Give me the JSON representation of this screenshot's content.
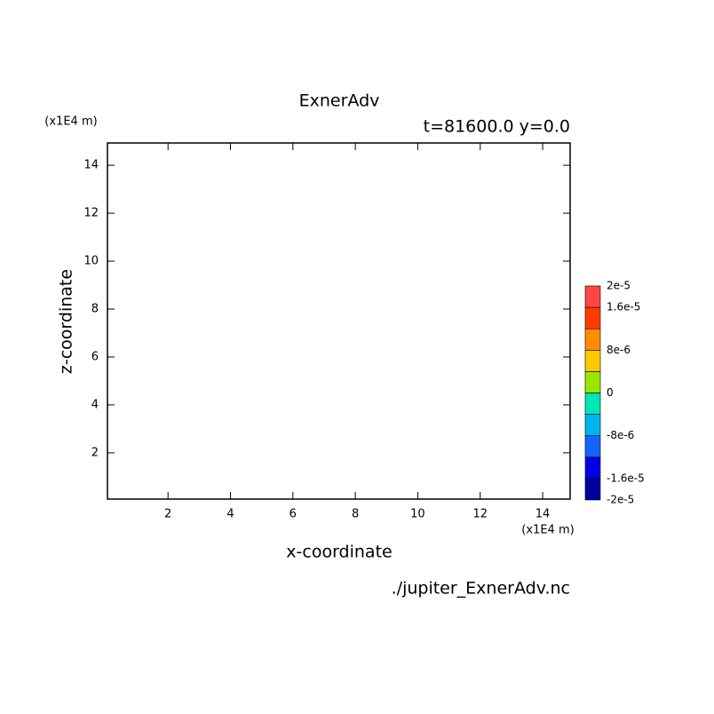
{
  "chart_data": {
    "type": "contour",
    "title": "ExnerAdv",
    "subtitle": "t=81600.0 y=0.0",
    "x_label": "x-coordinate",
    "y_label": "z-coordinate",
    "x_unit": "(x1E4 m)",
    "y_unit": "(x1E4 m)",
    "source": "./jupiter_ExnerAdv.nc",
    "xlim": [
      0.06,
      14.88
    ],
    "ylim": [
      0.07,
      14.93
    ],
    "xticks": [
      2,
      4,
      6,
      8,
      10,
      12,
      14
    ],
    "yticks": [
      2,
      4,
      6,
      8,
      10,
      12,
      14
    ],
    "colorbar": {
      "levels": [
        -2e-05,
        -1.6e-05,
        -1.2e-05,
        -8e-06,
        -4e-06,
        0,
        4e-06,
        8e-06,
        1.2e-05,
        1.6e-05,
        2e-05
      ],
      "colors": [
        "#00009c",
        "#0000e6",
        "#1464ff",
        "#00b4f0",
        "#00e6b4",
        "#9ae600",
        "#ffc800",
        "#ff8c00",
        "#ff3c00",
        "#ff4646"
      ],
      "ticks": [
        {
          "value": 2e-05,
          "label": "2e-5"
        },
        {
          "value": 1.6e-05,
          "label": "1.6e-5"
        },
        {
          "value": 8e-06,
          "label": "8e-6"
        },
        0,
        {
          "value": -8e-06,
          "label": "-8e-6"
        },
        {
          "value": -1.6e-05,
          "label": "-1.6e-5"
        },
        {
          "value": -2e-05,
          "label": "-2e-5"
        }
      ]
    }
  }
}
